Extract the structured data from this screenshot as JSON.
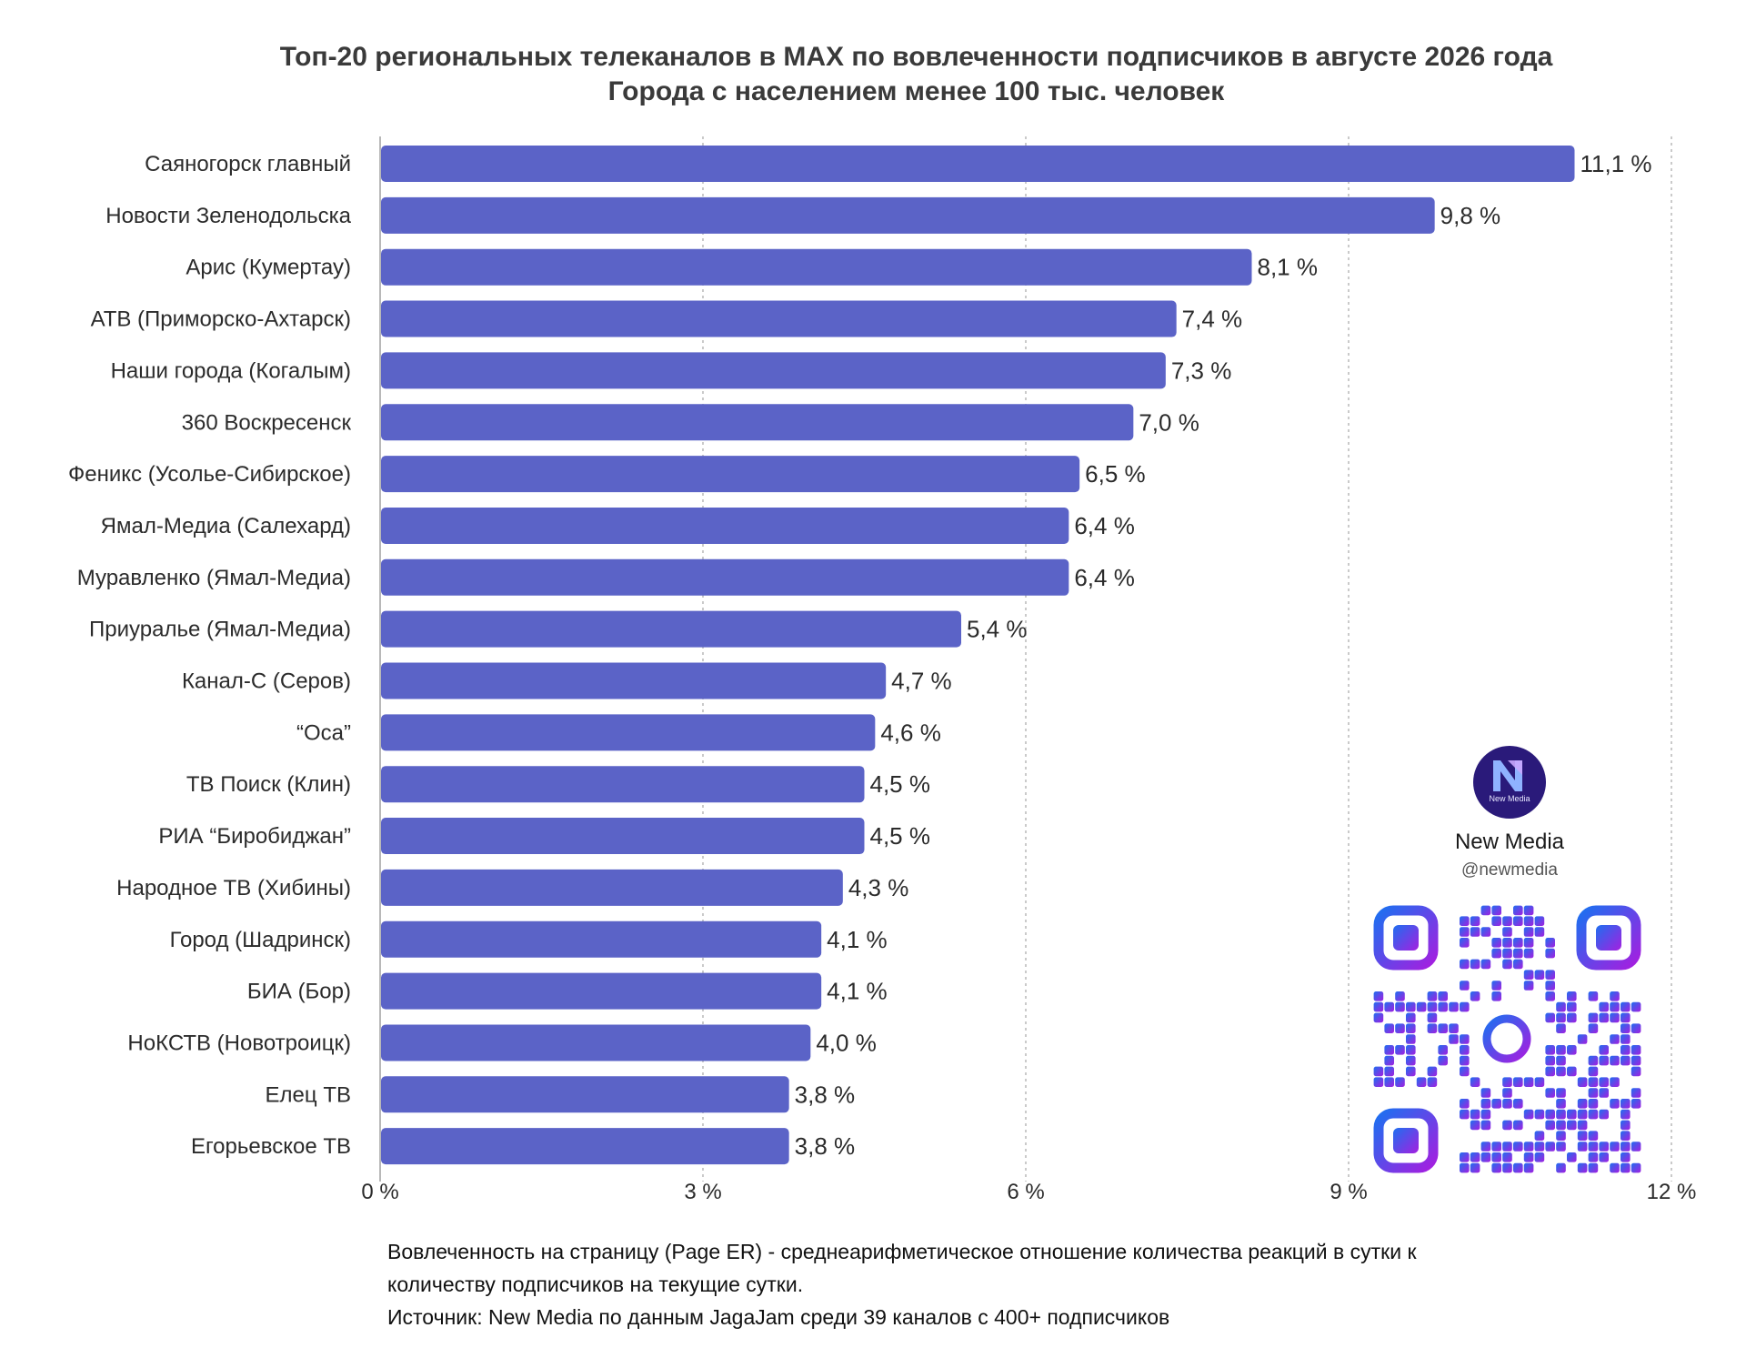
{
  "chart_data": {
    "type": "bar",
    "orientation": "horizontal",
    "title": "Топ-20 региональных телеканалов в MAX по вовлеченности подписчиков в августе 2026 года",
    "subtitle": "Города с населением менее 100 тыс. человек",
    "categories": [
      "Саяногорск главный",
      "Новости Зеленодольска",
      "Арис (Кумертау)",
      "АТВ (Приморско-Ахтарск)",
      "Наши города (Когалым)",
      "360 Воскресенск",
      "Феникс (Усолье-Сибирское)",
      "Ямал-Медиа (Салехард)",
      "Муравленко (Ямал-Медиа)",
      "Приуралье (Ямал-Медиа)",
      "Канал-С (Серов)",
      "“Оса”",
      "ТВ Поиск (Клин)",
      "РИА “Биробиджан”",
      "Народное ТВ (Хибины)",
      "Город (Шадринск)",
      "БИА (Бор)",
      "НоКСТВ (Новотроицк)",
      "Елец ТВ",
      "Егорьевское ТВ"
    ],
    "values": [
      11.1,
      9.8,
      8.1,
      7.4,
      7.3,
      7.0,
      6.5,
      6.4,
      6.4,
      5.4,
      4.7,
      4.6,
      4.5,
      4.5,
      4.3,
      4.1,
      4.1,
      4.0,
      3.8,
      3.8
    ],
    "value_labels": [
      "11,1 %",
      "9,8 %",
      "8,1 %",
      "7,4 %",
      "7,3 %",
      "7,0 %",
      "6,5 %",
      "6,4 %",
      "6,4 %",
      "5,4 %",
      "4,7 %",
      "4,6 %",
      "4,5 %",
      "4,5 %",
      "4,3 %",
      "4,1 %",
      "4,1 %",
      "4,0 %",
      "3,8 %",
      "3,8 %"
    ],
    "xlim": [
      0,
      12
    ],
    "x_ticks": [
      0,
      3,
      6,
      9,
      12
    ],
    "x_tick_labels": [
      "0 %",
      "3 %",
      "6 %",
      "9 %",
      "12 %"
    ],
    "grid": "vertical dashed",
    "bar_color": "#5b63c7",
    "grid_color": "#b8b8b8"
  },
  "brand": {
    "logo_text": "New Media",
    "name": "New Media",
    "handle": "@newmedia"
  },
  "footnote": {
    "line1": "Вовлеченность на страницу (Page ER) - среднеарифметическое отношение количества реакций в сутки к",
    "line2": "количеству подписчиков на текущие сутки.",
    "line3": "Источник: New Media по данным JagaJam среди 39 каналов с 400+ подписчиков"
  },
  "colors": {
    "qr_start": "#1e6ff0",
    "qr_end": "#a41fe0",
    "logo_bg": "#2a1a7a"
  }
}
